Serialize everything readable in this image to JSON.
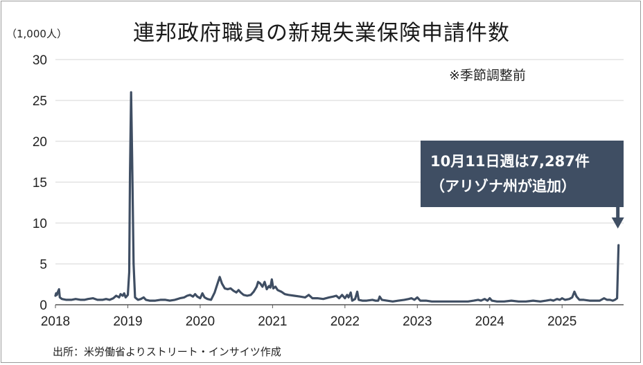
{
  "chart_data": {
    "type": "line",
    "title": "連邦政府職員の新規失業保険申請件数",
    "unit_label": "（1,000人）",
    "note": "※季節調整前",
    "source": "出所：米労働省よりストリート・インサイツ作成",
    "y_ticks": [
      "0",
      "5",
      "10",
      "15",
      "20",
      "25",
      "30"
    ],
    "x_ticks": [
      "2018",
      "2019",
      "2020",
      "2021",
      "2022",
      "2023",
      "2024",
      "2025"
    ],
    "ylim": [
      0,
      30
    ],
    "grid": true,
    "annotation": {
      "line1": "10月11日週は7,287件",
      "line2": "（アリゾナ州が追加）"
    },
    "series": [
      {
        "color": "#3f4e63",
        "points": [
          [
            2018.0,
            1.1
          ],
          [
            2018.01,
            1.4
          ],
          [
            2018.02,
            1.2
          ],
          [
            2018.03,
            1.5
          ],
          [
            2018.05,
            1.9
          ],
          [
            2018.06,
            0.9
          ],
          [
            2018.09,
            0.7
          ],
          [
            2018.15,
            0.6
          ],
          [
            2018.22,
            0.6
          ],
          [
            2018.28,
            0.7
          ],
          [
            2018.35,
            0.6
          ],
          [
            2018.4,
            0.6
          ],
          [
            2018.45,
            0.7
          ],
          [
            2018.52,
            0.8
          ],
          [
            2018.58,
            0.6
          ],
          [
            2018.65,
            0.6
          ],
          [
            2018.7,
            0.7
          ],
          [
            2018.75,
            0.6
          ],
          [
            2018.8,
            0.8
          ],
          [
            2018.84,
            1.1
          ],
          [
            2018.88,
            0.9
          ],
          [
            2018.9,
            1.3
          ],
          [
            2018.93,
            1.1
          ],
          [
            2018.95,
            1.4
          ],
          [
            2018.97,
            0.9
          ],
          [
            2019.0,
            1.2
          ],
          [
            2019.02,
            4.0
          ],
          [
            2019.03,
            16.0
          ],
          [
            2019.045,
            26.0
          ],
          [
            2019.06,
            18.0
          ],
          [
            2019.08,
            5.0
          ],
          [
            2019.1,
            0.9
          ],
          [
            2019.14,
            0.6
          ],
          [
            2019.18,
            0.7
          ],
          [
            2019.22,
            0.9
          ],
          [
            2019.25,
            0.6
          ],
          [
            2019.3,
            0.5
          ],
          [
            2019.38,
            0.5
          ],
          [
            2019.45,
            0.6
          ],
          [
            2019.52,
            0.6
          ],
          [
            2019.58,
            0.5
          ],
          [
            2019.65,
            0.6
          ],
          [
            2019.72,
            0.8
          ],
          [
            2019.78,
            0.9
          ],
          [
            2019.82,
            1.1
          ],
          [
            2019.86,
            1.2
          ],
          [
            2019.9,
            1.0
          ],
          [
            2019.93,
            1.3
          ],
          [
            2019.96,
            1.0
          ],
          [
            2020.0,
            0.8
          ],
          [
            2020.03,
            1.4
          ],
          [
            2020.06,
            0.9
          ],
          [
            2020.1,
            0.7
          ],
          [
            2020.15,
            0.6
          ],
          [
            2020.2,
            1.5
          ],
          [
            2020.24,
            2.6
          ],
          [
            2020.27,
            3.4
          ],
          [
            2020.3,
            2.6
          ],
          [
            2020.34,
            2.0
          ],
          [
            2020.38,
            1.9
          ],
          [
            2020.42,
            2.0
          ],
          [
            2020.46,
            1.7
          ],
          [
            2020.5,
            1.5
          ],
          [
            2020.53,
            1.8
          ],
          [
            2020.56,
            1.5
          ],
          [
            2020.6,
            1.2
          ],
          [
            2020.65,
            1.1
          ],
          [
            2020.7,
            1.2
          ],
          [
            2020.74,
            1.6
          ],
          [
            2020.78,
            2.2
          ],
          [
            2020.8,
            2.8
          ],
          [
            2020.83,
            2.6
          ],
          [
            2020.86,
            2.2
          ],
          [
            2020.89,
            2.8
          ],
          [
            2020.92,
            1.9
          ],
          [
            2020.95,
            2.3
          ],
          [
            2020.97,
            2.1
          ],
          [
            2020.99,
            3.1
          ],
          [
            2021.01,
            2.0
          ],
          [
            2021.04,
            2.2
          ],
          [
            2021.07,
            1.8
          ],
          [
            2021.12,
            1.6
          ],
          [
            2021.17,
            1.3
          ],
          [
            2021.22,
            1.2
          ],
          [
            2021.3,
            1.1
          ],
          [
            2021.38,
            1.0
          ],
          [
            2021.45,
            0.9
          ],
          [
            2021.5,
            1.2
          ],
          [
            2021.55,
            0.8
          ],
          [
            2021.62,
            0.8
          ],
          [
            2021.7,
            0.7
          ],
          [
            2021.78,
            0.9
          ],
          [
            2021.84,
            1.0
          ],
          [
            2021.88,
            1.1
          ],
          [
            2021.92,
            0.8
          ],
          [
            2021.96,
            1.2
          ],
          [
            2022.0,
            0.8
          ],
          [
            2022.03,
            1.2
          ],
          [
            2022.05,
            0.9
          ],
          [
            2022.08,
            1.5
          ],
          [
            2022.1,
            0.5
          ],
          [
            2022.14,
            0.7
          ],
          [
            2022.17,
            1.6
          ],
          [
            2022.19,
            0.6
          ],
          [
            2022.24,
            0.5
          ],
          [
            2022.3,
            0.5
          ],
          [
            2022.38,
            0.6
          ],
          [
            2022.42,
            0.5
          ],
          [
            2022.46,
            0.5
          ],
          [
            2022.48,
            1.0
          ],
          [
            2022.51,
            0.6
          ],
          [
            2022.58,
            0.5
          ],
          [
            2022.66,
            0.4
          ],
          [
            2022.74,
            0.5
          ],
          [
            2022.82,
            0.6
          ],
          [
            2022.88,
            0.7
          ],
          [
            2022.92,
            0.8
          ],
          [
            2022.96,
            0.6
          ],
          [
            2023.0,
            0.9
          ],
          [
            2023.04,
            0.5
          ],
          [
            2023.12,
            0.5
          ],
          [
            2023.2,
            0.4
          ],
          [
            2023.3,
            0.4
          ],
          [
            2023.4,
            0.4
          ],
          [
            2023.5,
            0.4
          ],
          [
            2023.6,
            0.4
          ],
          [
            2023.7,
            0.4
          ],
          [
            2023.78,
            0.5
          ],
          [
            2023.84,
            0.6
          ],
          [
            2023.88,
            0.5
          ],
          [
            2023.93,
            0.7
          ],
          [
            2023.97,
            0.5
          ],
          [
            2024.0,
            0.8
          ],
          [
            2024.03,
            0.5
          ],
          [
            2024.1,
            0.4
          ],
          [
            2024.2,
            0.4
          ],
          [
            2024.3,
            0.5
          ],
          [
            2024.4,
            0.4
          ],
          [
            2024.5,
            0.4
          ],
          [
            2024.6,
            0.5
          ],
          [
            2024.7,
            0.4
          ],
          [
            2024.78,
            0.5
          ],
          [
            2024.84,
            0.6
          ],
          [
            2024.88,
            0.5
          ],
          [
            2024.93,
            0.7
          ],
          [
            2024.97,
            0.6
          ],
          [
            2025.0,
            0.8
          ],
          [
            2025.04,
            0.6
          ],
          [
            2025.1,
            0.7
          ],
          [
            2025.14,
            0.9
          ],
          [
            2025.17,
            1.6
          ],
          [
            2025.2,
            1.0
          ],
          [
            2025.24,
            0.6
          ],
          [
            2025.3,
            0.6
          ],
          [
            2025.38,
            0.5
          ],
          [
            2025.45,
            0.5
          ],
          [
            2025.52,
            0.5
          ],
          [
            2025.58,
            0.8
          ],
          [
            2025.62,
            0.6
          ],
          [
            2025.66,
            0.6
          ],
          [
            2025.7,
            0.5
          ],
          [
            2025.73,
            0.6
          ],
          [
            2025.76,
            0.8
          ],
          [
            2025.78,
            7.287
          ]
        ]
      }
    ]
  }
}
